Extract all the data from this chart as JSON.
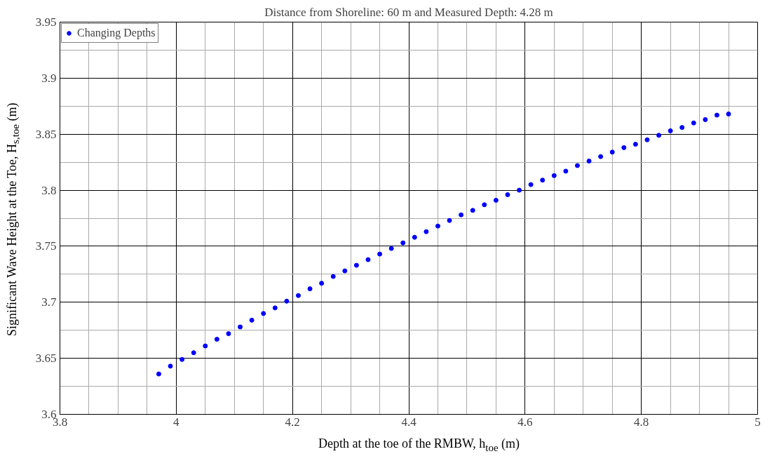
{
  "chart_data": {
    "type": "scatter",
    "title": "Distance from Shoreline: 60 m and Measured Depth: 4.28 m",
    "xlabel": "Depth at the toe of the RMBW, h$_{toe}$ (m)",
    "ylabel": "Significant Wave Height at the Toe, H$_{s,toe}$ (m)",
    "x": [
      3.97,
      3.99,
      4.01,
      4.03,
      4.05,
      4.07,
      4.09,
      4.11,
      4.13,
      4.15,
      4.17,
      4.19,
      4.21,
      4.23,
      4.25,
      4.27,
      4.29,
      4.31,
      4.33,
      4.35,
      4.37,
      4.39,
      4.41,
      4.43,
      4.45,
      4.47,
      4.49,
      4.51,
      4.53,
      4.55,
      4.57,
      4.59,
      4.61,
      4.63,
      4.65,
      4.67,
      4.69,
      4.71,
      4.73,
      4.75,
      4.77,
      4.79,
      4.81,
      4.83,
      4.85,
      4.87,
      4.89,
      4.91,
      4.93,
      4.95
    ],
    "series": [
      {
        "name": "Changing Depths",
        "color": "#0000ff",
        "values": [
          3.636,
          3.643,
          3.649,
          3.655,
          3.661,
          3.667,
          3.672,
          3.678,
          3.684,
          3.69,
          3.695,
          3.701,
          3.706,
          3.712,
          3.717,
          3.723,
          3.728,
          3.733,
          3.738,
          3.743,
          3.748,
          3.753,
          3.758,
          3.763,
          3.768,
          3.773,
          3.778,
          3.782,
          3.787,
          3.791,
          3.796,
          3.8,
          3.805,
          3.809,
          3.813,
          3.817,
          3.822,
          3.826,
          3.83,
          3.834,
          3.838,
          3.841,
          3.845,
          3.849,
          3.853,
          3.856,
          3.86,
          3.863,
          3.867,
          3.868
        ]
      }
    ],
    "xlim": [
      3.8,
      5
    ],
    "ylim": [
      3.6,
      3.95
    ],
    "xticks": [
      3.8,
      4,
      4.2,
      4.4,
      4.6,
      4.8,
      5
    ],
    "yticks": [
      3.6,
      3.65,
      3.7,
      3.75,
      3.8,
      3.85,
      3.9,
      3.95
    ],
    "grid": true,
    "legend": "top left",
    "marker": "circle"
  }
}
